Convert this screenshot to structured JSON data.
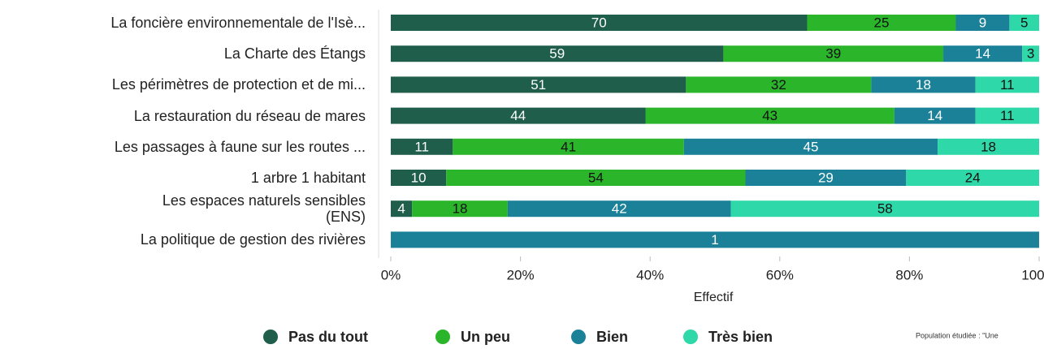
{
  "chart_data": {
    "type": "bar",
    "orientation": "horizontal",
    "stacking": "percent",
    "categories": [
      "La foncière environnementale de l'Isè...",
      "La Charte des Étangs",
      "Les périmètres de protection et de mi...",
      "La restauration du réseau de mares",
      "Les passages à faune sur les routes ...",
      "1 arbre 1 habitant",
      "Les espaces naturels sensibles\n(ENS)",
      "La politique de gestion des rivières"
    ],
    "series": [
      {
        "name": "Pas du tout",
        "color": "#1f5e4b",
        "label_color": "#ffffff",
        "values": [
          70,
          59,
          51,
          44,
          11,
          10,
          4,
          null
        ]
      },
      {
        "name": "Un peu",
        "color": "#2bb52b",
        "label_color": "#111111",
        "values": [
          25,
          39,
          32,
          43,
          41,
          54,
          18,
          null
        ]
      },
      {
        "name": "Bien",
        "color": "#1b8199",
        "label_color": "#ffffff",
        "values": [
          9,
          14,
          18,
          14,
          45,
          29,
          42,
          1
        ]
      },
      {
        "name": "Très bien",
        "color": "#2fd8a8",
        "label_color": "#111111",
        "values": [
          5,
          3,
          11,
          11,
          18,
          24,
          58,
          null
        ]
      }
    ],
    "xlim": [
      0,
      100
    ],
    "xticks": [
      {
        "value": 0,
        "label": "0%"
      },
      {
        "value": 20,
        "label": "20%"
      },
      {
        "value": 40,
        "label": "40%"
      },
      {
        "value": 60,
        "label": "60%"
      },
      {
        "value": 80,
        "label": "80%"
      },
      {
        "value": 100,
        "label": "100%"
      }
    ],
    "x_label": "Effectif",
    "legend": "bottom",
    "footnote": "Population étudiée : \"Une"
  }
}
